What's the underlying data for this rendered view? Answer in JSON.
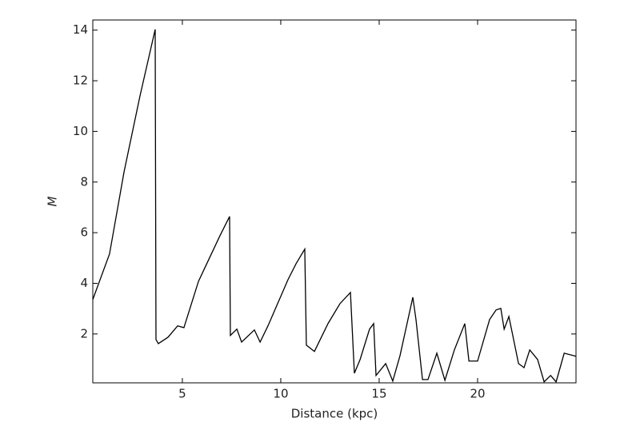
{
  "chart_data": {
    "type": "line",
    "xlabel": "Distance (kpc)",
    "ylabel": "M",
    "xlim": [
      0.45,
      25.0
    ],
    "ylim": [
      0.07,
      14.4
    ],
    "xticks": [
      5,
      10,
      15,
      20
    ],
    "yticks": [
      2,
      4,
      6,
      8,
      10,
      12,
      14
    ],
    "series": [
      {
        "color": "#000000",
        "x": [
          0.45,
          1.3,
          2.04,
          2.85,
          3.62,
          3.66,
          3.78,
          4.27,
          4.76,
          5.08,
          5.82,
          6.91,
          7.4,
          7.44,
          7.77,
          8.01,
          8.66,
          8.95,
          9.35,
          10.37,
          10.78,
          11.22,
          11.3,
          11.71,
          12.4,
          13.01,
          13.54,
          13.74,
          14.03,
          14.51,
          14.72,
          14.84,
          15.33,
          15.69,
          16.06,
          16.71,
          16.87,
          17.2,
          17.48,
          17.93,
          18.34,
          18.82,
          19.35,
          19.56,
          20.0,
          20.61,
          20.94,
          21.18,
          21.35,
          21.59,
          22.08,
          22.36,
          22.65,
          23.05,
          23.38,
          23.71,
          23.99,
          24.4,
          25.0
        ],
        "values": [
          3.36,
          5.16,
          8.41,
          11.41,
          14.03,
          1.78,
          1.62,
          1.87,
          2.32,
          2.25,
          4.08,
          5.88,
          6.64,
          1.94,
          2.19,
          1.68,
          2.16,
          1.68,
          2.32,
          4.15,
          4.78,
          5.35,
          1.56,
          1.31,
          2.41,
          3.2,
          3.64,
          0.45,
          0.99,
          2.19,
          2.41,
          0.36,
          0.83,
          0.14,
          1.15,
          3.45,
          2.57,
          0.2,
          0.2,
          1.24,
          0.17,
          1.37,
          2.41,
          0.93,
          0.93,
          2.57,
          2.95,
          3.01,
          2.19,
          2.69,
          0.83,
          0.67,
          1.37,
          0.99,
          0.11,
          0.36,
          0.11,
          1.24,
          1.12
        ]
      }
    ]
  }
}
